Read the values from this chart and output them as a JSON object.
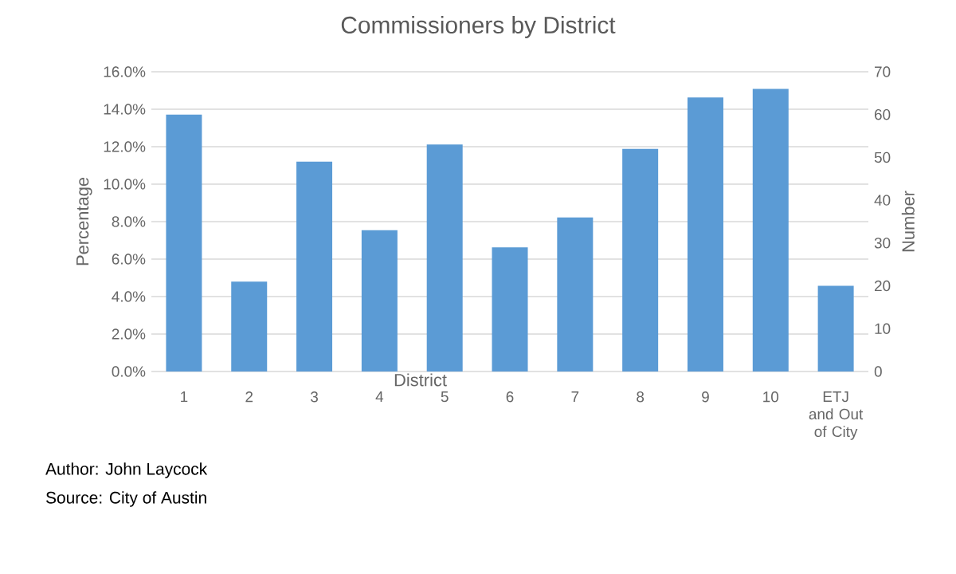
{
  "chart_data": {
    "type": "bar",
    "title": "Commissioners by District",
    "xlabel": "District",
    "ylabel": "Percentage",
    "y2label": "Number",
    "categories": [
      "1",
      "2",
      "3",
      "4",
      "5",
      "6",
      "7",
      "8",
      "9",
      "10",
      "ETJ and Out of City"
    ],
    "series": [
      {
        "color": "#5b9bd5",
        "axis": "y2",
        "values": [
          60,
          21,
          49,
          33,
          53,
          29,
          36,
          52,
          64,
          66,
          20
        ]
      }
    ],
    "ylim": [
      0,
      16
    ],
    "yticks": [
      {
        "value": 0,
        "label": "0.0%"
      },
      {
        "value": 2,
        "label": "2.0%"
      },
      {
        "value": 4,
        "label": "4.0%"
      },
      {
        "value": 6,
        "label": "6.0%"
      },
      {
        "value": 8,
        "label": "8.0%"
      },
      {
        "value": 10,
        "label": "10.0%"
      },
      {
        "value": 12,
        "label": "12.0%"
      },
      {
        "value": 14,
        "label": "14.0%"
      },
      {
        "value": 16,
        "label": "16.0%"
      }
    ],
    "y2lim": [
      0,
      70
    ],
    "y2ticks": [
      0,
      10,
      20,
      30,
      40,
      50,
      60,
      70
    ],
    "grid": "y",
    "annotations": [
      "Author: John Laycock",
      "Source: City of Austin"
    ]
  }
}
